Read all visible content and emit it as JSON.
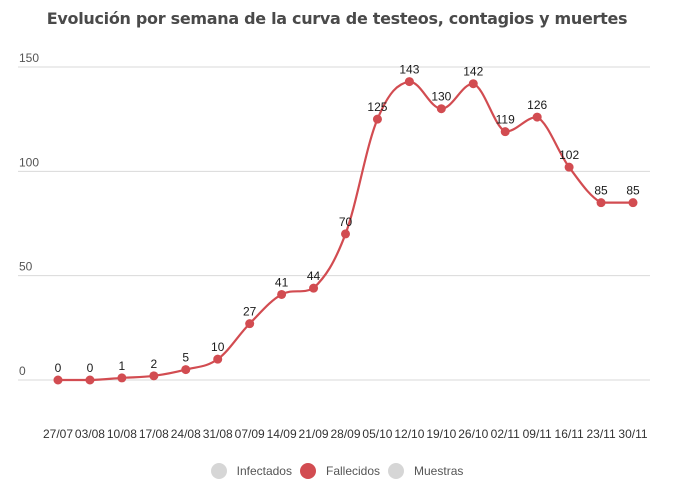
{
  "chart_data": {
    "type": "line",
    "title": "Evolución por semana de la curva de testeos, contagios y muertes",
    "xlabel": "",
    "ylabel": "",
    "categories": [
      "27/07",
      "03/08",
      "10/08",
      "17/08",
      "24/08",
      "31/08",
      "07/09",
      "14/09",
      "21/09",
      "28/09",
      "05/10",
      "12/10",
      "19/10",
      "26/10",
      "02/11",
      "09/11",
      "16/11",
      "23/11",
      "30/11"
    ],
    "ylim": [
      0,
      150
    ],
    "yticks": [
      0,
      50,
      100,
      150
    ],
    "grid": true,
    "legend_position": "bottom",
    "series": [
      {
        "name": "Infectados",
        "color": "#d6d6d6",
        "visible": false,
        "values": []
      },
      {
        "name": "Fallecidos",
        "color": "#d24c51",
        "visible": true,
        "values": [
          0,
          0,
          1,
          2,
          5,
          10,
          27,
          41,
          44,
          70,
          125,
          143,
          130,
          142,
          119,
          126,
          102,
          85,
          85
        ]
      },
      {
        "name": "Muestras",
        "color": "#d6d6d6",
        "visible": false,
        "values": []
      }
    ]
  }
}
